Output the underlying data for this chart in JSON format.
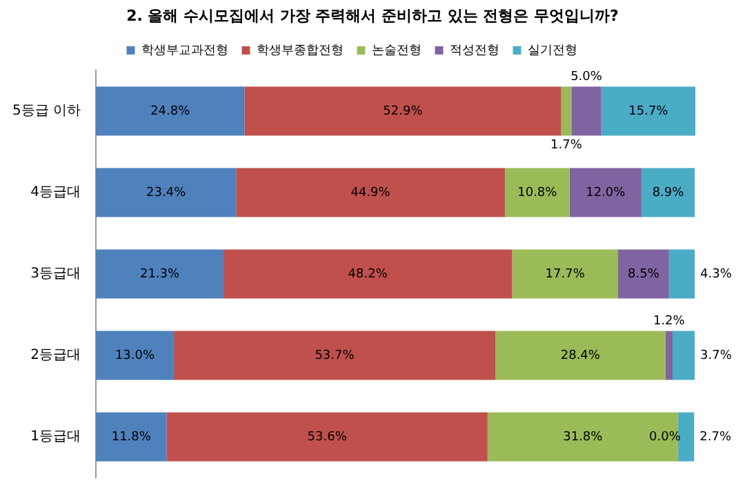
{
  "chart_data": {
    "type": "bar",
    "orientation": "horizontal",
    "stacked": true,
    "title": "2. 올해 수시모집에서 가장 주력해서 준비하고 있는 전형은 무엇입니까?",
    "categories": [
      "5등급 이하",
      "4등급대",
      "3등급대",
      "2등급대",
      "1등급대"
    ],
    "series": [
      {
        "name": "학생부교과전형",
        "color": "#4f81bd",
        "values": [
          24.8,
          23.4,
          21.3,
          13.0,
          11.8
        ],
        "value_labels": [
          "24.8%",
          "23.4%",
          "21.3%",
          "13.0%",
          "11.8%"
        ]
      },
      {
        "name": "학생부종합전형",
        "color": "#c0504d",
        "values": [
          52.9,
          44.9,
          48.2,
          53.7,
          53.6
        ],
        "value_labels": [
          "52.9%",
          "44.9%",
          "48.2%",
          "53.7%",
          "53.6%"
        ]
      },
      {
        "name": "논술전형",
        "color": "#9bbb59",
        "values": [
          1.7,
          10.8,
          17.7,
          28.4,
          31.8
        ],
        "value_labels": [
          "1.7%",
          "10.8%",
          "17.7%",
          "28.4%",
          "31.8%"
        ]
      },
      {
        "name": "적성전형",
        "color": "#8064a2",
        "values": [
          5.0,
          12.0,
          8.5,
          1.2,
          0.0
        ],
        "value_labels": [
          "5.0%",
          "12.0%",
          "8.5%",
          "1.2%",
          "0.0%"
        ]
      },
      {
        "name": "실기전형",
        "color": "#4bacc6",
        "values": [
          15.7,
          8.9,
          4.3,
          3.7,
          2.7
        ],
        "value_labels": [
          "15.7%",
          "8.9%",
          "4.3%",
          "3.7%",
          "2.7%"
        ]
      }
    ],
    "legend": "top",
    "tick_labels": "y"
  }
}
